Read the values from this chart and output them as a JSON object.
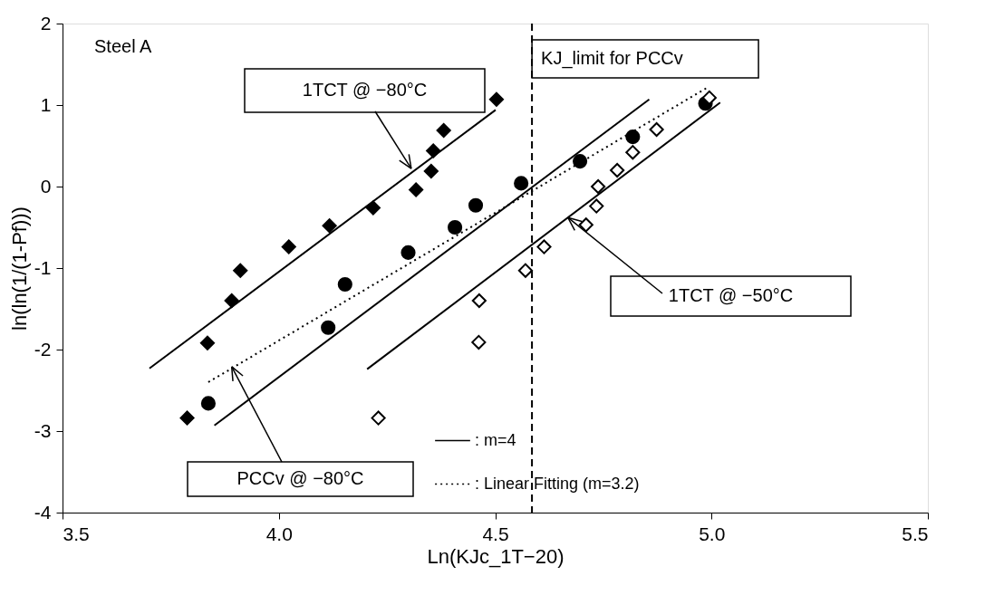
{
  "chart_data": {
    "type": "scatter",
    "xlabel": "Ln(KJc_1T−20)",
    "ylabel": "ln(ln(1/(1-Pf)))",
    "xlim": [
      3.5,
      5.5
    ],
    "xticks": [
      3.5,
      {
        "value": 4,
        "label": "4.0"
      },
      4.5,
      {
        "value": 5,
        "label": "5.0"
      },
      5.5
    ],
    "ylim": [
      -4,
      2
    ],
    "yticks": [
      -4,
      -3,
      -2,
      -1,
      0,
      1,
      2
    ],
    "grid": false,
    "legend": "bottom",
    "series": [
      {
        "marker": "diamond",
        "color": "#000000",
        "x": [
          3.788,
          3.835,
          3.891,
          3.911,
          4.023,
          4.117,
          4.218,
          4.317,
          4.352,
          4.357,
          4.381,
          4.503
        ],
        "values": [
          -2.84,
          -1.92,
          -1.4,
          -1.03,
          -0.74,
          -0.48,
          -0.26,
          -0.04,
          0.19,
          0.44,
          0.69,
          1.07
        ]
      },
      {
        "marker": "circle",
        "color": "#000000",
        "x": [
          3.837,
          4.114,
          4.153,
          4.299,
          4.407,
          4.455,
          4.56,
          4.696,
          4.818,
          4.986
        ],
        "values": [
          -2.66,
          -1.73,
          -1.2,
          -0.81,
          -0.5,
          -0.23,
          0.04,
          0.31,
          0.61,
          1.02
        ]
      },
      {
        "marker": "diamond",
        "color": "#ffffff",
        "x": [
          4.23,
          4.462,
          4.463,
          4.57,
          4.613,
          4.71,
          4.734,
          4.738,
          4.782,
          4.818,
          4.873,
          4.995
        ],
        "values": [
          -2.84,
          -1.91,
          -1.4,
          -1.03,
          -0.74,
          -0.47,
          -0.24,
          0.0,
          0.2,
          0.42,
          0.7,
          1.09
        ]
      },
      {
        "type": "line",
        "name": ": m=4",
        "line_style": "solid",
        "color": "#000000",
        "x": [
          3.701,
          4.501
        ],
        "values": [
          -2.23,
          0.94
        ]
      },
      {
        "type": "line",
        "line_style": "solid",
        "color": "#000000",
        "x": [
          3.851,
          4.856
        ],
        "values": [
          -2.93,
          1.07
        ]
      },
      {
        "type": "line",
        "line_style": "solid",
        "color": "#000000",
        "x": [
          4.204,
          5.02
        ],
        "values": [
          -2.24,
          1.03
        ]
      },
      {
        "type": "line",
        "name": ": Linear Fitting (m=3.2)",
        "line_style": "dotted",
        "color": "#000000",
        "x": [
          3.837,
          4.992
        ],
        "values": [
          -2.4,
          1.22
        ]
      }
    ],
    "ref_lines": [
      {
        "axis": "x",
        "value": 4.585,
        "label": "KJ_limit for PCCv",
        "line_style": "dashed",
        "color": "#000000"
      }
    ],
    "annotations": [
      "Steel A",
      {
        "text": "1TCT @ −80°C",
        "x": 4.306,
        "y": 0.22
      },
      {
        "text": "1TCT @ −50°C",
        "x": 4.668,
        "y": -0.38
      },
      {
        "text": "PCCv @ −80°C",
        "x": 3.891,
        "y": -2.21
      }
    ]
  }
}
